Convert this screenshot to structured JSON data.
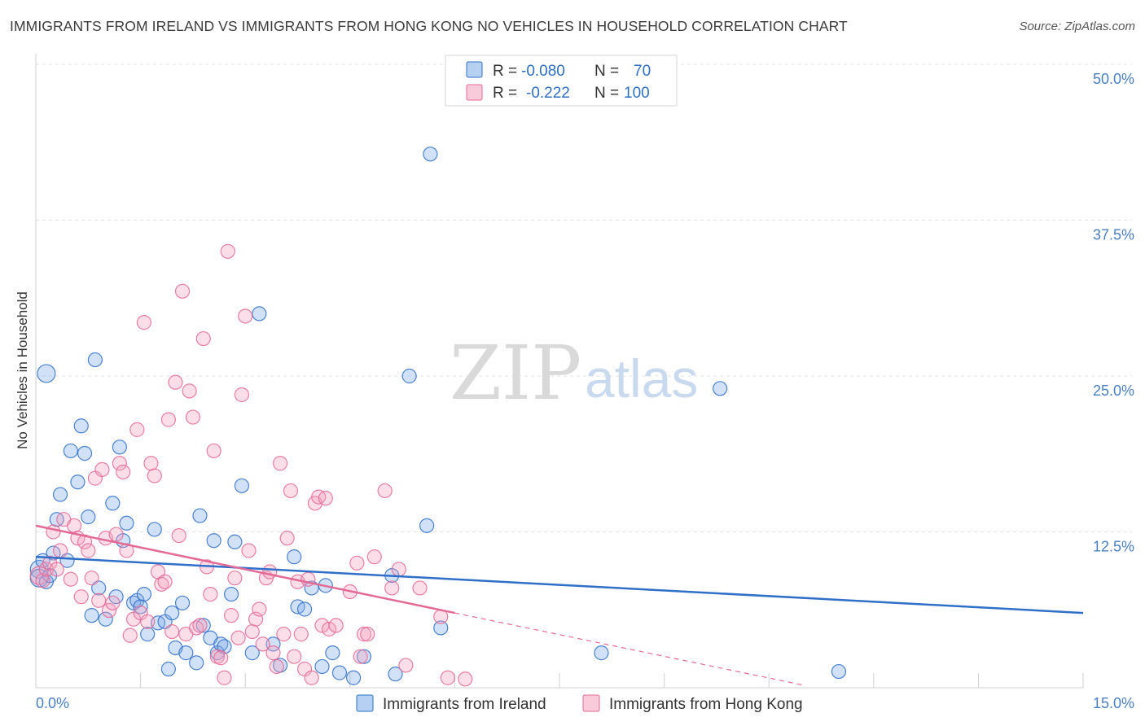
{
  "title": "IMMIGRANTS FROM IRELAND VS IMMIGRANTS FROM HONG KONG NO VEHICLES IN HOUSEHOLD CORRELATION CHART",
  "source": "Source: ZipAtlas.com",
  "watermark": {
    "zip": "ZIP",
    "atlas": "atlas"
  },
  "colors": {
    "ireland": "#7aaae8",
    "ireland_line": "#2f6fc8",
    "hongkong": "#f4a0bc",
    "hongkong_line": "#e46a96"
  },
  "legend": {
    "r_label": "R =",
    "n_label": "N =",
    "ireland": {
      "r": "-0.080",
      "n": "70"
    },
    "hongkong": {
      "r": "-0.222",
      "n": "100"
    }
  },
  "chart_data": {
    "type": "scatter",
    "xlabel": "",
    "ylabel": "No Vehicles in Household",
    "xlim": [
      0,
      15
    ],
    "ylim": [
      0,
      50
    ],
    "x_ticks": [
      "0.0%",
      "15.0%"
    ],
    "y_ticks": [
      "12.5%",
      "25.0%",
      "37.5%",
      "50.0%"
    ],
    "grid": true,
    "legend_position": "top-center",
    "series": [
      {
        "name": "Immigrants from Ireland",
        "trend": {
          "x": [
            0,
            15
          ],
          "y": [
            10.5,
            6.0
          ]
        },
        "points": [
          [
            0.05,
            9.5,
            2
          ],
          [
            0.05,
            8.8,
            2
          ],
          [
            0.1,
            10.2,
            1
          ],
          [
            0.15,
            25.2,
            2
          ],
          [
            0.15,
            8.5,
            1
          ],
          [
            0.2,
            9.0,
            1
          ],
          [
            0.25,
            10.8,
            1
          ],
          [
            0.3,
            13.5,
            1
          ],
          [
            0.35,
            15.5,
            1
          ],
          [
            0.45,
            10.2,
            1
          ],
          [
            0.5,
            19.0,
            1
          ],
          [
            0.6,
            16.5,
            1
          ],
          [
            0.65,
            21.0,
            1
          ],
          [
            0.7,
            18.8,
            1
          ],
          [
            0.75,
            13.7,
            1
          ],
          [
            0.8,
            5.8,
            1
          ],
          [
            0.85,
            26.3,
            1
          ],
          [
            0.9,
            8.0,
            1
          ],
          [
            1.0,
            5.5,
            1
          ],
          [
            1.1,
            14.8,
            1
          ],
          [
            1.15,
            7.3,
            1
          ],
          [
            1.2,
            19.3,
            1
          ],
          [
            1.25,
            11.8,
            1
          ],
          [
            1.3,
            13.2,
            1
          ],
          [
            1.4,
            6.8,
            1
          ],
          [
            1.45,
            7.0,
            1
          ],
          [
            1.5,
            6.5,
            1
          ],
          [
            1.55,
            7.5,
            1
          ],
          [
            1.6,
            4.3,
            1
          ],
          [
            1.7,
            12.7,
            1
          ],
          [
            1.75,
            5.2,
            1
          ],
          [
            1.85,
            5.3,
            1
          ],
          [
            1.9,
            1.5,
            1
          ],
          [
            1.95,
            6.0,
            1
          ],
          [
            2.0,
            3.2,
            1
          ],
          [
            2.1,
            6.8,
            1
          ],
          [
            2.15,
            2.8,
            1
          ],
          [
            2.3,
            2.0,
            1
          ],
          [
            2.35,
            13.8,
            1
          ],
          [
            2.4,
            5.0,
            1
          ],
          [
            2.5,
            4.0,
            1
          ],
          [
            2.55,
            11.8,
            1
          ],
          [
            2.6,
            2.8,
            1
          ],
          [
            2.65,
            3.5,
            1
          ],
          [
            2.7,
            3.3,
            1
          ],
          [
            2.8,
            7.5,
            1
          ],
          [
            2.85,
            11.7,
            1
          ],
          [
            2.95,
            16.2,
            1
          ],
          [
            3.1,
            2.8,
            1
          ],
          [
            3.2,
            30.0,
            1
          ],
          [
            3.4,
            3.5,
            1
          ],
          [
            3.5,
            1.8,
            1
          ],
          [
            3.7,
            10.5,
            1
          ],
          [
            3.75,
            6.5,
            1
          ],
          [
            3.85,
            6.3,
            1
          ],
          [
            3.95,
            8.0,
            1
          ],
          [
            4.1,
            1.7,
            1
          ],
          [
            4.15,
            8.2,
            1
          ],
          [
            4.25,
            2.8,
            1
          ],
          [
            4.35,
            1.2,
            1
          ],
          [
            4.55,
            0.8,
            1
          ],
          [
            4.7,
            2.5,
            1
          ],
          [
            5.1,
            9.0,
            1
          ],
          [
            5.15,
            1.1,
            1
          ],
          [
            5.35,
            25.0,
            1
          ],
          [
            5.6,
            13.0,
            1
          ],
          [
            5.65,
            42.8,
            1
          ],
          [
            5.8,
            4.8,
            1
          ],
          [
            8.1,
            2.8,
            1
          ],
          [
            9.8,
            24.0,
            1
          ],
          [
            11.5,
            1.3,
            1
          ]
        ]
      },
      {
        "name": "Immigrants from Hong Kong",
        "trend": {
          "x": [
            0,
            6.0
          ],
          "y": [
            13.0,
            6.0
          ]
        },
        "trend_dashed": {
          "x": [
            6.0,
            11.0
          ],
          "y": [
            6.0,
            0.2
          ]
        },
        "points": [
          [
            0.05,
            9.0,
            2
          ],
          [
            0.1,
            8.6,
            1
          ],
          [
            0.15,
            9.5,
            1
          ],
          [
            0.2,
            10.0,
            1
          ],
          [
            0.25,
            12.5,
            1
          ],
          [
            0.3,
            9.5,
            1
          ],
          [
            0.35,
            11.0,
            1
          ],
          [
            0.4,
            13.5,
            1
          ],
          [
            0.5,
            8.7,
            1
          ],
          [
            0.55,
            13.0,
            1
          ],
          [
            0.6,
            12.0,
            1
          ],
          [
            0.65,
            7.3,
            1
          ],
          [
            0.7,
            11.7,
            1
          ],
          [
            0.75,
            11.0,
            1
          ],
          [
            0.8,
            8.8,
            1
          ],
          [
            0.85,
            16.8,
            1
          ],
          [
            0.9,
            7.0,
            1
          ],
          [
            0.95,
            17.5,
            1
          ],
          [
            1.0,
            12.0,
            1
          ],
          [
            1.05,
            6.2,
            1
          ],
          [
            1.1,
            6.8,
            1
          ],
          [
            1.15,
            12.3,
            1
          ],
          [
            1.2,
            18.0,
            1
          ],
          [
            1.25,
            17.3,
            1
          ],
          [
            1.3,
            11.0,
            1
          ],
          [
            1.35,
            4.2,
            1
          ],
          [
            1.4,
            5.5,
            1
          ],
          [
            1.45,
            20.7,
            1
          ],
          [
            1.5,
            6.0,
            1
          ],
          [
            1.55,
            29.3,
            1
          ],
          [
            1.6,
            5.3,
            1
          ],
          [
            1.65,
            18.0,
            1
          ],
          [
            1.7,
            17.0,
            1
          ],
          [
            1.75,
            9.3,
            1
          ],
          [
            1.8,
            8.3,
            1
          ],
          [
            1.85,
            8.5,
            1
          ],
          [
            1.9,
            21.5,
            1
          ],
          [
            1.95,
            4.5,
            1
          ],
          [
            2.0,
            24.5,
            1
          ],
          [
            2.05,
            12.2,
            1
          ],
          [
            2.1,
            31.8,
            1
          ],
          [
            2.15,
            4.3,
            1
          ],
          [
            2.2,
            23.8,
            1
          ],
          [
            2.25,
            21.7,
            1
          ],
          [
            2.3,
            4.8,
            1
          ],
          [
            2.35,
            5.0,
            1
          ],
          [
            2.4,
            28.0,
            1
          ],
          [
            2.45,
            9.7,
            1
          ],
          [
            2.5,
            7.5,
            1
          ],
          [
            2.55,
            19.0,
            1
          ],
          [
            2.6,
            2.5,
            1
          ],
          [
            2.65,
            2.4,
            1
          ],
          [
            2.7,
            0.8,
            1
          ],
          [
            2.75,
            35.0,
            1
          ],
          [
            2.8,
            5.8,
            1
          ],
          [
            2.85,
            8.8,
            1
          ],
          [
            2.9,
            4.0,
            1
          ],
          [
            2.95,
            23.5,
            1
          ],
          [
            3.0,
            29.8,
            1
          ],
          [
            3.05,
            11.0,
            1
          ],
          [
            3.1,
            4.5,
            1
          ],
          [
            3.15,
            5.5,
            1
          ],
          [
            3.2,
            6.3,
            1
          ],
          [
            3.25,
            3.5,
            1
          ],
          [
            3.3,
            8.8,
            1
          ],
          [
            3.35,
            9.3,
            1
          ],
          [
            3.4,
            2.8,
            1
          ],
          [
            3.45,
            1.7,
            1
          ],
          [
            3.5,
            18.0,
            1
          ],
          [
            3.55,
            4.3,
            1
          ],
          [
            3.6,
            12.0,
            1
          ],
          [
            3.65,
            15.8,
            1
          ],
          [
            3.7,
            2.5,
            1
          ],
          [
            3.75,
            8.5,
            1
          ],
          [
            3.8,
            4.3,
            1
          ],
          [
            3.85,
            1.5,
            1
          ],
          [
            3.9,
            8.7,
            1
          ],
          [
            3.95,
            0.8,
            1
          ],
          [
            4.0,
            14.8,
            1
          ],
          [
            4.05,
            15.3,
            1
          ],
          [
            4.1,
            5.0,
            1
          ],
          [
            4.15,
            15.2,
            1
          ],
          [
            4.2,
            4.7,
            1
          ],
          [
            4.3,
            5.0,
            1
          ],
          [
            4.5,
            7.7,
            1
          ],
          [
            4.6,
            10.0,
            1
          ],
          [
            4.65,
            2.5,
            1
          ],
          [
            4.7,
            4.3,
            1
          ],
          [
            4.75,
            4.3,
            1
          ],
          [
            4.85,
            10.5,
            1
          ],
          [
            5.0,
            15.8,
            1
          ],
          [
            5.1,
            8.0,
            1
          ],
          [
            5.2,
            9.5,
            1
          ],
          [
            5.3,
            1.8,
            1
          ],
          [
            5.5,
            8.0,
            1
          ],
          [
            5.8,
            5.7,
            1
          ],
          [
            5.9,
            0.8,
            1
          ],
          [
            6.15,
            0.7,
            1
          ]
        ]
      }
    ]
  },
  "bottom_legend": {
    "ireland": "Immigrants from Ireland",
    "hongkong": "Immigrants from Hong Kong"
  }
}
